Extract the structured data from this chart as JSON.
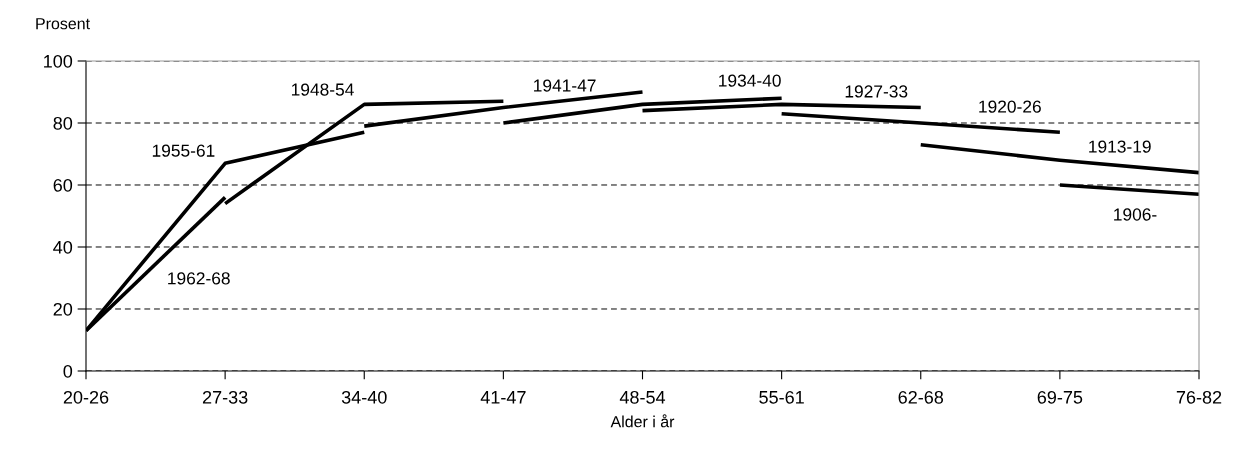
{
  "chart_data": {
    "type": "line",
    "ylabel": "Prosent",
    "xlabel": "Alder i år",
    "categories": [
      "20-26",
      "27-33",
      "34-40",
      "41-47",
      "48-54",
      "55-61",
      "62-68",
      "69-75",
      "76-82"
    ],
    "series": [
      {
        "name": "1962-68",
        "color": "#000000",
        "values": [
          13,
          56,
          null,
          null,
          null,
          null,
          null,
          null,
          null
        ]
      },
      {
        "name": "1955-61",
        "color": "#000000",
        "values": [
          13,
          67,
          77,
          null,
          null,
          null,
          null,
          null,
          null
        ]
      },
      {
        "name": "1948-54",
        "color": "#000000",
        "values": [
          null,
          54,
          86,
          87,
          null,
          null,
          null,
          null,
          null
        ]
      },
      {
        "name": "1941-47",
        "color": "#000000",
        "values": [
          null,
          null,
          79,
          85,
          90,
          null,
          null,
          null,
          null
        ]
      },
      {
        "name": "1934-40",
        "color": "#000000",
        "values": [
          null,
          null,
          null,
          80,
          86,
          88,
          null,
          null,
          null
        ]
      },
      {
        "name": "1927-33",
        "color": "#000000",
        "values": [
          null,
          null,
          null,
          null,
          84,
          86,
          85,
          null,
          null
        ]
      },
      {
        "name": "1920-26",
        "color": "#000000",
        "values": [
          null,
          null,
          null,
          null,
          null,
          83,
          80,
          77,
          null
        ]
      },
      {
        "name": "1913-19",
        "color": "#000000",
        "values": [
          null,
          null,
          null,
          null,
          null,
          null,
          73,
          68,
          64
        ]
      },
      {
        "name": "1906-",
        "color": "#000000",
        "values": [
          null,
          null,
          null,
          null,
          null,
          null,
          null,
          60,
          57
        ]
      }
    ],
    "ylim": [
      0,
      100
    ],
    "yticks": [
      0,
      20,
      40,
      60,
      80,
      100
    ],
    "grid": "y",
    "legend": false,
    "marker": "none",
    "line_style": "solid"
  }
}
